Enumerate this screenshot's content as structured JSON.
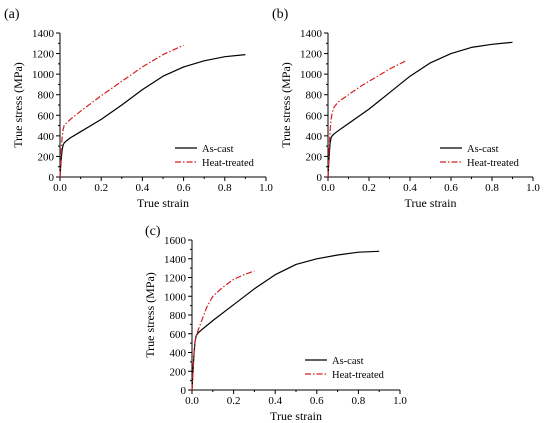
{
  "chart_data": [
    {
      "type": "line",
      "panel_label": "(a)",
      "xlabel": "True strain",
      "ylabel": "True stress (MPa)",
      "xlim": [
        0,
        1.0
      ],
      "ylim": [
        0,
        1400
      ],
      "xticks": [
        0.0,
        0.2,
        0.4,
        0.6,
        0.8,
        1.0
      ],
      "xtick_labels": [
        "0.0",
        "0.2",
        "0.4",
        "0.6",
        "0.8",
        "1.0"
      ],
      "yticks": [
        0,
        200,
        400,
        600,
        800,
        1000,
        1200,
        1400
      ],
      "ytick_labels": [
        "0",
        "200",
        "400",
        "600",
        "800",
        "1000",
        "1200",
        "1400"
      ],
      "legend_position": "lower-right",
      "series": [
        {
          "name": "As-cast",
          "color": "#000000",
          "style": "solid",
          "x": [
            0,
            0.005,
            0.01,
            0.015,
            0.02,
            0.03,
            0.05,
            0.1,
            0.2,
            0.3,
            0.4,
            0.5,
            0.6,
            0.7,
            0.8,
            0.9
          ],
          "y": [
            0,
            150,
            260,
            310,
            330,
            350,
            380,
            440,
            560,
            700,
            850,
            980,
            1070,
            1130,
            1170,
            1190
          ]
        },
        {
          "name": "Heat-treated",
          "color": "#d42020",
          "style": "dash-dot",
          "x": [
            0,
            0.005,
            0.01,
            0.015,
            0.02,
            0.03,
            0.05,
            0.1,
            0.2,
            0.3,
            0.4,
            0.5,
            0.6
          ],
          "y": [
            0,
            200,
            380,
            460,
            500,
            520,
            560,
            640,
            790,
            930,
            1070,
            1190,
            1280
          ]
        }
      ]
    },
    {
      "type": "line",
      "panel_label": "(b)",
      "xlabel": "True strain",
      "ylabel": "True stress (MPa)",
      "xlim": [
        0,
        1.0
      ],
      "ylim": [
        0,
        1400
      ],
      "xticks": [
        0.0,
        0.2,
        0.4,
        0.6,
        0.8,
        1.0
      ],
      "xtick_labels": [
        "0.0",
        "0.2",
        "0.4",
        "0.6",
        "0.8",
        "1.0"
      ],
      "yticks": [
        0,
        200,
        400,
        600,
        800,
        1000,
        1200,
        1400
      ],
      "ytick_labels": [
        "0",
        "200",
        "400",
        "600",
        "800",
        "1000",
        "1200",
        "1400"
      ],
      "legend_position": "lower-right",
      "series": [
        {
          "name": "As-cast",
          "color": "#000000",
          "style": "solid",
          "x": [
            0,
            0.005,
            0.01,
            0.015,
            0.02,
            0.03,
            0.05,
            0.1,
            0.2,
            0.3,
            0.4,
            0.5,
            0.6,
            0.7,
            0.8,
            0.9
          ],
          "y": [
            0,
            180,
            330,
            380,
            400,
            420,
            450,
            520,
            660,
            820,
            980,
            1110,
            1200,
            1260,
            1290,
            1310
          ]
        },
        {
          "name": "Heat-treated",
          "color": "#d42020",
          "style": "dash-dot",
          "x": [
            0,
            0.005,
            0.01,
            0.015,
            0.02,
            0.03,
            0.05,
            0.1,
            0.15,
            0.2,
            0.25,
            0.3,
            0.35,
            0.38
          ],
          "y": [
            0,
            250,
            450,
            560,
            620,
            680,
            730,
            800,
            870,
            930,
            990,
            1050,
            1100,
            1130
          ]
        }
      ]
    },
    {
      "type": "line",
      "panel_label": "(c)",
      "xlabel": "True strain",
      "ylabel": "True stress (MPa)",
      "xlim": [
        0,
        1.0
      ],
      "ylim": [
        0,
        1600
      ],
      "xticks": [
        0.0,
        0.2,
        0.4,
        0.6,
        0.8,
        1.0
      ],
      "xtick_labels": [
        "0.0",
        "0.2",
        "0.4",
        "0.6",
        "0.8",
        "1.0"
      ],
      "yticks": [
        0,
        200,
        400,
        600,
        800,
        1000,
        1200,
        1400,
        1600
      ],
      "ytick_labels": [
        "0",
        "200",
        "400",
        "600",
        "800",
        "1000",
        "1200",
        "1400",
        "1600"
      ],
      "legend_position": "lower-right",
      "series": [
        {
          "name": "As-cast",
          "color": "#000000",
          "style": "solid",
          "x": [
            0,
            0.005,
            0.01,
            0.015,
            0.02,
            0.03,
            0.05,
            0.1,
            0.2,
            0.3,
            0.4,
            0.5,
            0.6,
            0.7,
            0.8,
            0.9
          ],
          "y": [
            0,
            200,
            400,
            520,
            580,
            610,
            650,
            740,
            910,
            1080,
            1230,
            1340,
            1400,
            1440,
            1470,
            1480
          ]
        },
        {
          "name": "Heat-treated",
          "color": "#d42020",
          "style": "dash-dot",
          "x": [
            0,
            0.005,
            0.01,
            0.015,
            0.02,
            0.03,
            0.05,
            0.07,
            0.1,
            0.15,
            0.2,
            0.25,
            0.3
          ],
          "y": [
            0,
            200,
            400,
            520,
            580,
            640,
            760,
            880,
            1000,
            1100,
            1180,
            1230,
            1270
          ]
        }
      ]
    }
  ]
}
